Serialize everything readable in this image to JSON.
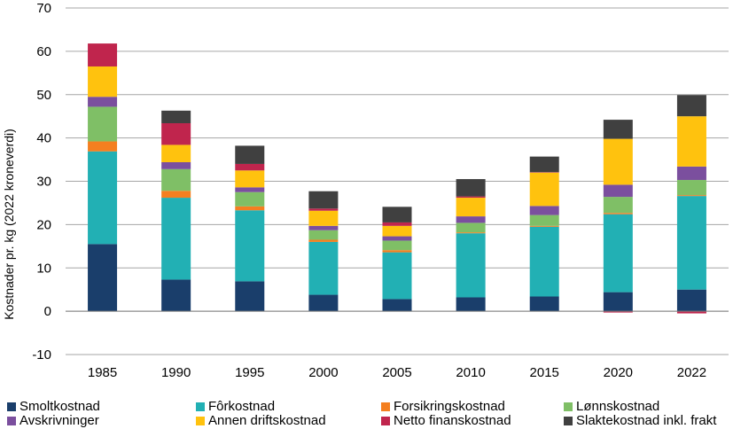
{
  "chart_data": {
    "type": "bar",
    "stacked": true,
    "categories": [
      "1985",
      "1990",
      "1995",
      "2000",
      "2005",
      "2010",
      "2015",
      "2020",
      "2022"
    ],
    "ylabel": "Kostnader pr. kg (2022 kroneverdi)",
    "ylim": [
      -10,
      70
    ],
    "yticks": [
      "-10",
      "0",
      "10",
      "20",
      "30",
      "40",
      "50",
      "60",
      "70"
    ],
    "ytick_values": [
      -10,
      0,
      10,
      20,
      30,
      40,
      50,
      60,
      70
    ],
    "grid": true,
    "legend_position": "bottom",
    "series": [
      {
        "name": "Smoltkostnad",
        "color": "#1a3e6b",
        "values": [
          15.5,
          7.3,
          6.9,
          3.8,
          2.8,
          3.2,
          3.4,
          4.4,
          5.0
        ]
      },
      {
        "name": "Fôrkostnad",
        "color": "#22b0b4",
        "values": [
          21.4,
          18.9,
          16.4,
          12.2,
          10.8,
          14.8,
          16.1,
          18.0,
          21.6
        ]
      },
      {
        "name": "Forsikringskostnad",
        "color": "#f47f20",
        "values": [
          2.3,
          1.6,
          0.9,
          0.5,
          0.5,
          0.2,
          0.2,
          0.3,
          0.2
        ]
      },
      {
        "name": "Lønnskostnad",
        "color": "#7fbf66",
        "values": [
          8.0,
          5.0,
          3.3,
          2.2,
          2.2,
          2.2,
          2.5,
          3.7,
          3.5
        ]
      },
      {
        "name": "Avskrivninger",
        "color": "#7b4f9e",
        "values": [
          2.3,
          1.6,
          1.1,
          1.0,
          1.0,
          1.5,
          2.1,
          2.8,
          3.1
        ]
      },
      {
        "name": "Annen driftskostnad",
        "color": "#ffc20e",
        "values": [
          7.0,
          4.0,
          3.9,
          3.5,
          2.4,
          4.3,
          7.7,
          10.6,
          11.6
        ]
      },
      {
        "name": "Netto finanskostnad",
        "color": "#c0254d",
        "values": [
          5.3,
          5.0,
          1.5,
          0.5,
          0.8,
          0.3,
          0.1,
          -0.3,
          -0.5
        ]
      },
      {
        "name": "Slaktekostnad inkl. frakt",
        "color": "#404040",
        "values": [
          0.0,
          2.9,
          4.2,
          4.0,
          3.6,
          4.0,
          3.6,
          4.4,
          4.9
        ]
      }
    ]
  }
}
